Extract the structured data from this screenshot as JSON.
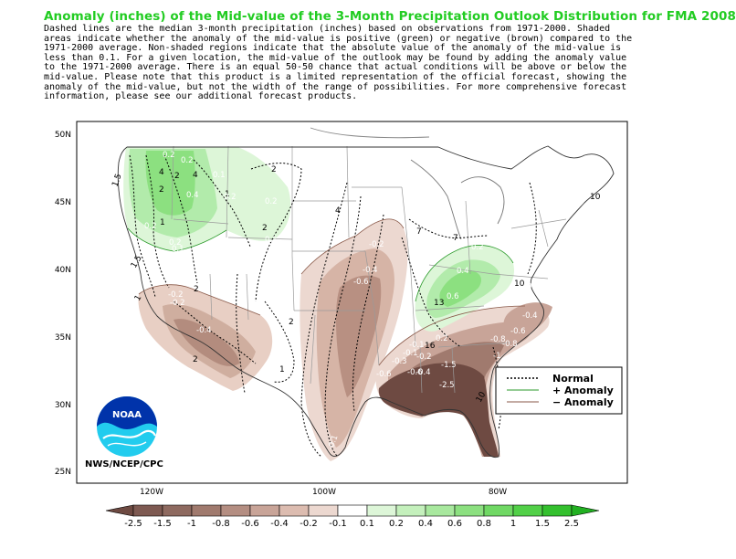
{
  "title": "Anomaly (inches) of the Mid-value of the 3-Month Precipitation Outlook Distribution for FMA 2008",
  "description_lines": [
    "Dashed lines are the median 3-month precipitation (inches) based on observations from 1971-2000.  Shaded",
    "areas indicate whether the anomaly of the mid-value is positive (green) or negative (brown) compared to the",
    "1971-2000 average.   Non-shaded regions indicate that the absolute value of the anomaly of the mid-value is",
    "less than 0.1.    For a given location, the mid-value of the outlook may be found by adding the anomaly value",
    "to the 1971-2000 average. There is an equal 50-50 chance that actual conditions will be above or below the",
    "mid-value. Please note that this product is a limited representation of the official forecast, showing the",
    "anomaly of the mid-value, but not the width of the range of possibilities. For more comprehensive forecast",
    "information, please see our additional forecast products."
  ],
  "lat_labels": [
    "50N",
    "45N",
    "40N",
    "35N",
    "30N",
    "25N"
  ],
  "lon_labels": [
    "120W",
    "100W",
    "80W"
  ],
  "legend": {
    "normal": "Normal",
    "plus": "+ Anomaly",
    "minus": "− Anomaly"
  },
  "colorbar": {
    "labels": [
      "-2.5",
      "-1.5",
      "-1",
      "-0.8",
      "-0.6",
      "-0.4",
      "-0.2",
      "-0.1",
      "0.1",
      "0.2",
      "0.4",
      "0.6",
      "0.8",
      "1",
      "1.5",
      "2.5"
    ],
    "colors": [
      "#6e4a42",
      "#7e5a52",
      "#8e6a60",
      "#a07a6e",
      "#b48e82",
      "#c8a498",
      "#dcbcb0",
      "#ecd8d0",
      "#ffffff",
      "#ddf6d8",
      "#c4f0bc",
      "#a8e89e",
      "#8ce080",
      "#70d864",
      "#52d048",
      "#34c02e",
      "#22b022"
    ]
  },
  "credit": "NWS/NCEP/CPC",
  "noaa_logo_text": "NOAA",
  "map_labels": {
    "median": [
      "4",
      "4",
      "2",
      "1",
      "2",
      "1",
      "2",
      "1.5",
      "1",
      "2",
      "4",
      "7",
      "7",
      "10",
      "13",
      "16",
      "10",
      "10",
      "2",
      "2",
      "1",
      "2",
      "1.5"
    ],
    "anomaly": [
      "0.2",
      "0.2",
      "0.1",
      "0.4",
      "0.2",
      "0.2",
      "0.1",
      "0.2",
      "0.2",
      "0.1",
      "-0.1",
      "-0.2",
      "-0.4",
      "-0.6",
      "-0.2",
      "-0.4",
      "-0.2",
      "-0.1",
      "0.2",
      "0.4",
      "0.6",
      "0.2",
      "-0.1",
      "-0.1",
      "-0.2",
      "-0.4",
      "-0.6",
      "-0.8",
      "-1",
      "-1.5",
      "-2.5",
      "-0.8",
      "-0.6",
      "-0.4",
      "-0.1",
      "-0.3",
      "-0.6"
    ]
  }
}
